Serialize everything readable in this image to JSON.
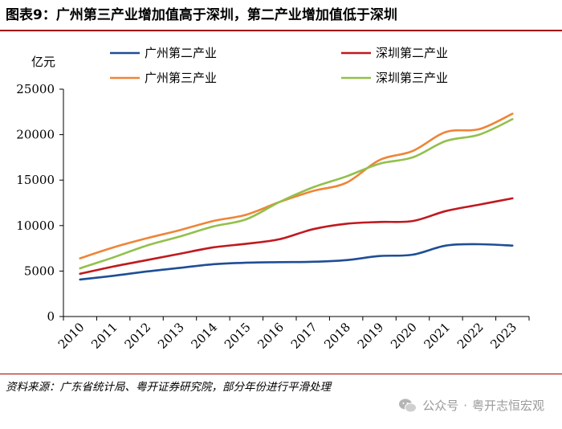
{
  "title": "图表9：广州第三产业增加值高于深圳，第二产业增加值低于深圳",
  "source": "资料来源：广东省统计局、粤开证券研究院，部分年份进行平滑处理",
  "watermark": {
    "platform": "公众号",
    "separator": "·",
    "account": "粤开志恒宏观",
    "icon": "wechat-icon"
  },
  "colors": {
    "gz_secondary": "#1f4e96",
    "sz_secondary": "#c0191f",
    "gz_tertiary": "#ee8538",
    "sz_tertiary": "#92c04c",
    "axis": "#000000",
    "title_rule": "#a00000"
  },
  "chart_data": {
    "type": "line",
    "title": "",
    "xlabel": "",
    "ylabel": "亿元",
    "ylim": [
      0,
      25000
    ],
    "yticks": [
      0,
      5000,
      10000,
      15000,
      20000,
      25000
    ],
    "x": [
      "2010",
      "2011",
      "2012",
      "2013",
      "2014",
      "2015",
      "2016",
      "2017",
      "2018",
      "2019",
      "2020",
      "2021",
      "2022",
      "2023"
    ],
    "grid": false,
    "legend_position": "top",
    "series": [
      {
        "name": "广州第二产业",
        "color_key": "gz_secondary",
        "values": [
          4070,
          4480,
          4950,
          5350,
          5750,
          5920,
          5980,
          6020,
          6200,
          6650,
          6800,
          7800,
          7950,
          7800
        ]
      },
      {
        "name": "深圳第二产业",
        "color_key": "sz_secondary",
        "values": [
          4700,
          5500,
          6200,
          6900,
          7600,
          8000,
          8500,
          9600,
          10200,
          10400,
          10500,
          11600,
          12300,
          13000
        ]
      },
      {
        "name": "广州第三产业",
        "color_key": "gz_tertiary",
        "values": [
          6400,
          7600,
          8600,
          9500,
          10500,
          11200,
          12600,
          13800,
          14700,
          17200,
          18200,
          20300,
          20600,
          22300
        ]
      },
      {
        "name": "深圳第三产业",
        "color_key": "sz_tertiary",
        "values": [
          5300,
          6500,
          7800,
          8800,
          9900,
          10700,
          12600,
          14200,
          15400,
          16800,
          17500,
          19300,
          20000,
          21700
        ]
      }
    ]
  }
}
